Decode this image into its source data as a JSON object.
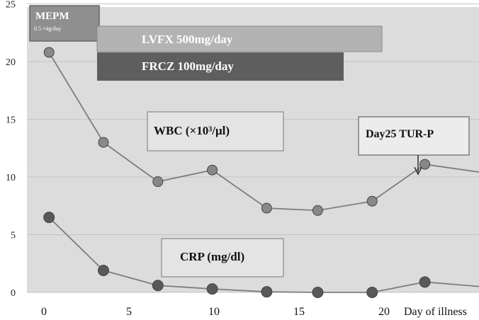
{
  "chart_data": {
    "type": "line",
    "xlabel": "Day of illness",
    "x_ticks": [
      0,
      5,
      10,
      15,
      20
    ],
    "y_ticks": [
      0,
      5,
      10,
      15,
      20,
      25
    ],
    "xlim": [
      -0.5,
      26
    ],
    "ylim": [
      -0.5,
      25.5
    ],
    "grid": true,
    "series": [
      {
        "name": "WBC (×10³/μl)",
        "x": [
          0.3,
          3.5,
          6.7,
          9.9,
          13.1,
          16.1,
          19.3,
          22.4,
          25.7
        ],
        "values": [
          20.8,
          13.0,
          9.6,
          10.6,
          7.3,
          7.1,
          7.9,
          11.1,
          10.4
        ]
      },
      {
        "name": "CRP (mg/dl)",
        "x": [
          0.3,
          3.5,
          6.7,
          9.9,
          13.1,
          16.1,
          19.3,
          22.4,
          25.7
        ],
        "values": [
          6.5,
          1.9,
          0.6,
          0.3,
          0.05,
          0.0,
          0.0,
          0.9,
          0.5
        ]
      }
    ],
    "treatments": [
      {
        "label": "MEPM",
        "sublabel": "0.5 ×4g/day",
        "start": -0.5,
        "end": 3.3
      },
      {
        "label": "LVFX 500mg/day",
        "start": 3.3,
        "end": 19.6
      },
      {
        "label": "FRCZ 100mg/day",
        "start": 3.3,
        "end": 17.5
      }
    ],
    "annotations": [
      {
        "text": "Day25 TUR-P",
        "x": 22.0,
        "y": 10.3
      }
    ]
  },
  "colors": {
    "plot_bg": "#dcdcdc",
    "grid": "#c4c4c4",
    "line": "#7d7d7d",
    "marker": "#595959",
    "bar_mepm": "#8f8f8f",
    "bar_lvfx": "#b3b3b3",
    "bar_frcz": "#5e5e5e"
  }
}
